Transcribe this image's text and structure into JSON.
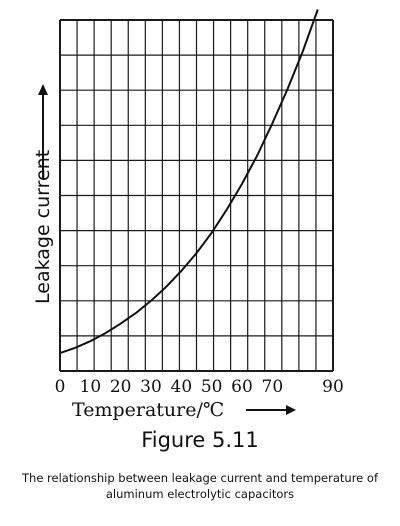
{
  "chart_data": {
    "type": "line",
    "title": "",
    "xlabel": "Temperature/℃",
    "ylabel": "Leakage current",
    "x_ticks": [
      "0",
      "10",
      "20",
      "30",
      "40",
      "50",
      "60",
      "70",
      "90"
    ],
    "xlim": [
      0,
      90
    ],
    "ylim": [
      0,
      100
    ],
    "grid": true,
    "y_tick_labels_shown": false,
    "series": [
      {
        "x": [
          0,
          5,
          10,
          15,
          20,
          25,
          30,
          35,
          40,
          45,
          50,
          55,
          60,
          65,
          70,
          75,
          80,
          85
        ],
        "y": [
          5.1,
          6.6,
          8.5,
          10.8,
          13.5,
          16.5,
          20.0,
          24.0,
          28.5,
          33.6,
          39.4,
          46.0,
          53.3,
          61.4,
          70.5,
          80.3,
          91.0,
          103.0
        ]
      }
    ]
  },
  "figure": {
    "label": "Figure 5.11",
    "caption": "The relationship between leakage current and temperature of aluminum electrolytic capacitors"
  }
}
